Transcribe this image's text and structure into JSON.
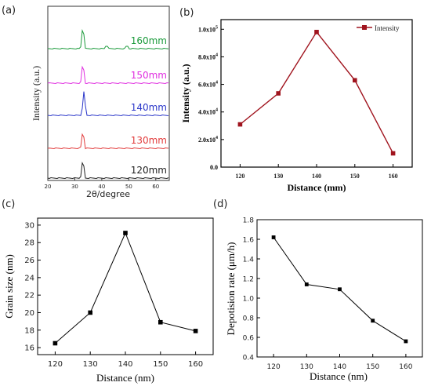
{
  "panels": [
    {
      "id": "a",
      "label": "(a)",
      "chart_data": {
        "type": "line",
        "style": "stacked xrd patterns",
        "xlabel": "2θ/degree",
        "ylabel": "Intensity (a.u.)",
        "xlim": [
          20,
          65
        ],
        "xticks": [
          20,
          30,
          40,
          50,
          60
        ],
        "series": [
          {
            "name": "120mm",
            "color": "#222222",
            "main_peak": 33,
            "minor_peaks": []
          },
          {
            "name": "130mm",
            "color": "#e23b3b",
            "main_peak": 33,
            "minor_peaks": []
          },
          {
            "name": "140mm",
            "color": "#2a36c9",
            "main_peak": 33.4,
            "minor_peaks": []
          },
          {
            "name": "150mm",
            "color": "#e02ee0",
            "main_peak": 33,
            "minor_peaks": []
          },
          {
            "name": "160mm",
            "color": "#1a9a3a",
            "main_peak": 33,
            "minor_peaks": [
              42,
              49.5
            ]
          }
        ]
      }
    },
    {
      "id": "b",
      "label": "(b)",
      "chart_data": {
        "type": "line",
        "xlabel": "Distance (mm)",
        "ylabel": "Intensity (a.u.)",
        "x": [
          120,
          130,
          140,
          150,
          160
        ],
        "series": [
          {
            "name": "Intensity",
            "values": [
              31000,
              53500,
              98000,
              63000,
              10000
            ],
            "color": "#a0141e"
          }
        ],
        "xlim": [
          115,
          165
        ],
        "ylim": [
          0,
          107000
        ],
        "xticks": [
          120,
          130,
          140,
          150,
          160
        ],
        "yticks": [
          0,
          20000,
          40000,
          60000,
          80000,
          100000
        ],
        "ytick_labels": [
          {
            "mantissa": "0.0",
            "exp": ""
          },
          {
            "mantissa": "2.0x10",
            "exp": "4"
          },
          {
            "mantissa": "4.0x10",
            "exp": "4"
          },
          {
            "mantissa": "6.0x10",
            "exp": "4"
          },
          {
            "mantissa": "8.0x10",
            "exp": "4"
          },
          {
            "mantissa": "1.0x10",
            "exp": "5"
          }
        ],
        "legend": "top-right"
      }
    },
    {
      "id": "c",
      "label": "(c)",
      "chart_data": {
        "type": "line",
        "xlabel": "Distance (nm)",
        "ylabel": "Grain size (nm)",
        "x": [
          120,
          130,
          140,
          150,
          160
        ],
        "series": [
          {
            "values": [
              16.5,
              20.0,
              29.1,
              18.9,
              17.9
            ],
            "color": "#000000"
          }
        ],
        "xlim": [
          115,
          165
        ],
        "ylim": [
          15.2,
          30.8
        ],
        "xticks": [
          120,
          130,
          140,
          150,
          160
        ],
        "yticks": [
          16,
          18,
          20,
          22,
          24,
          26,
          28,
          30
        ]
      }
    },
    {
      "id": "d",
      "label": "(d)",
      "chart_data": {
        "type": "line",
        "xlabel": "Distance (nm)",
        "ylabel": "Depotision rate (μm/h)",
        "x": [
          120,
          130,
          140,
          150,
          160
        ],
        "series": [
          {
            "values": [
              1.62,
              1.14,
              1.09,
              0.77,
              0.56
            ],
            "color": "#000000"
          }
        ],
        "xlim": [
          115,
          165
        ],
        "ylim": [
          0.4,
          1.8
        ],
        "xticks": [
          120,
          130,
          140,
          150,
          160
        ],
        "yticks": [
          0.4,
          0.6,
          0.8,
          1.0,
          1.2,
          1.4,
          1.6,
          1.8
        ],
        "ytick_labels": [
          "0.4",
          "0.6",
          "0.8",
          "1.0",
          "1.2",
          "1.4",
          "1.6",
          "1.8"
        ]
      }
    }
  ]
}
